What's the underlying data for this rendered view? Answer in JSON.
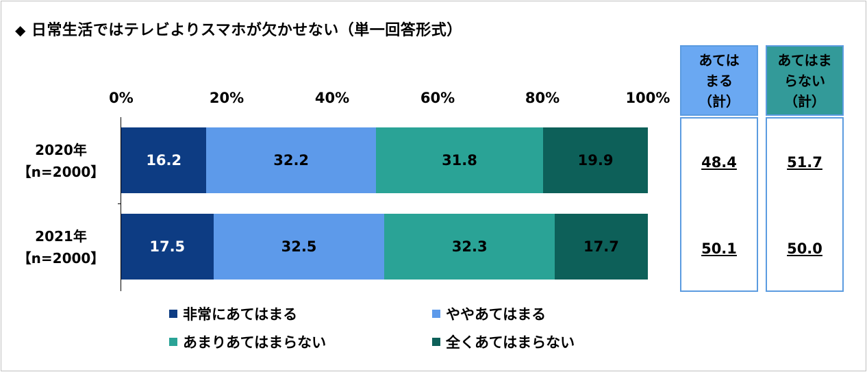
{
  "title": "日常生活ではテレビよりスマホが欠かせない（単一回答形式）",
  "title_marker": "◆",
  "chart_data": {
    "type": "bar",
    "orientation": "horizontal",
    "stacked": true,
    "percent_scale": true,
    "xlim": [
      0,
      100
    ],
    "x_ticks": [
      "0%",
      "20%",
      "40%",
      "60%",
      "80%",
      "100%"
    ],
    "categories": [
      {
        "year": "2020年",
        "n": "【n=2000】"
      },
      {
        "year": "2021年",
        "n": "【n=2000】"
      }
    ],
    "series": [
      {
        "name": "非常にあてはまる",
        "color": "#0d3c83",
        "values": [
          16.2,
          17.5
        ],
        "labels": [
          "16.2",
          "17.5"
        ]
      },
      {
        "name": "ややあてはまる",
        "color": "#5d9aea",
        "values": [
          32.2,
          32.5
        ],
        "labels": [
          "32.2",
          "32.5"
        ]
      },
      {
        "name": "あまりあてはまらない",
        "color": "#2aa396",
        "values": [
          31.8,
          32.3
        ],
        "labels": [
          "31.8",
          "32.3"
        ]
      },
      {
        "name": "全くあてはまらない",
        "color": "#0d6059",
        "values": [
          19.9,
          17.7
        ],
        "labels": [
          "19.9",
          "17.7"
        ]
      }
    ],
    "legend_position": "bottom"
  },
  "summary": {
    "applies": {
      "header_lines": [
        "あては",
        "まる",
        "（計）"
      ],
      "header_bg": "#6aa8f2",
      "values": [
        "48.4",
        "50.1"
      ]
    },
    "not_applies": {
      "header_lines": [
        "あてはま",
        "らない",
        "（計）"
      ],
      "header_bg": "#339a99",
      "values": [
        "51.7",
        "50.0"
      ]
    }
  }
}
